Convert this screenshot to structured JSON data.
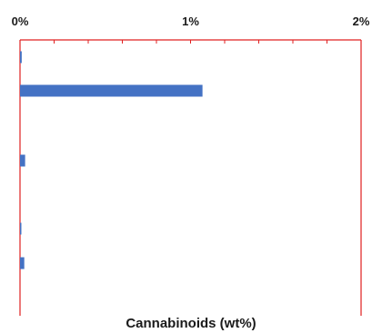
{
  "chart_data": {
    "type": "bar",
    "orientation": "horizontal",
    "title": "",
    "xlabel": "Cannabinoids (wt%)",
    "ylabel": "",
    "xlim": [
      0,
      2
    ],
    "x_tick_labels": [
      "0%",
      "1%",
      "2%"
    ],
    "x_tick_values": [
      0,
      1,
      2
    ],
    "x_axis_position": "top",
    "categories": [
      "",
      "",
      "",
      "",
      ""
    ],
    "values": [
      0.01,
      1.07,
      0.03,
      0.005,
      0.025
    ],
    "grid": false,
    "legend": "none"
  },
  "colors": {
    "bar": "#4472c4",
    "axis": "#e02020",
    "text": "#1a1a1a"
  }
}
